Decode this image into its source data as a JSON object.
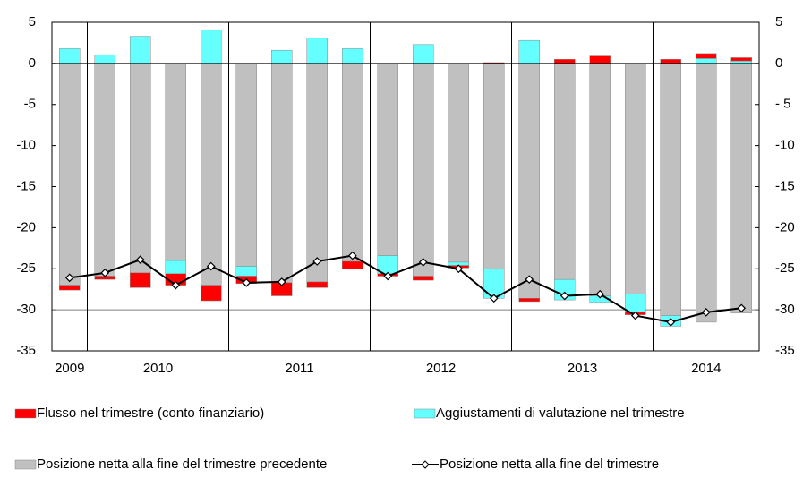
{
  "chart_data": {
    "type": "bar",
    "categories": [
      "2009",
      "2010",
      null,
      null,
      null,
      "2011",
      null,
      null,
      null,
      "2012",
      null,
      null,
      null,
      "2013",
      null,
      null,
      null,
      "2014",
      null,
      null
    ],
    "series": [
      {
        "name": "Flusso nel trimestre (conto finanziario)",
        "color": "#ff0000",
        "values": [
          -0.6,
          -0.4,
          -1.8,
          -1.4,
          -1.9,
          -0.9,
          -1.6,
          -0.7,
          -0.9,
          -0.3,
          -0.5,
          -0.3,
          0.1,
          -0.4,
          0.5,
          0.9,
          -0.3,
          0.5,
          0.6,
          0.4
        ]
      },
      {
        "name": "Aggiustamenti di valutazione nel trimestre",
        "color": "#66ffff",
        "values": [
          1.8,
          1.0,
          3.3,
          -1.6,
          4.1,
          -1.2,
          1.6,
          3.1,
          1.8,
          -2.2,
          2.3,
          -0.4,
          -3.6,
          2.8,
          -2.5,
          -0.8,
          -2.2,
          -1.3,
          0.6,
          0.3
        ]
      },
      {
        "name": "Posizione netta alla fine del trimestre precedente",
        "color": "#c0c0c0",
        "values": [
          -27.0,
          -25.9,
          -25.5,
          -24.0,
          -27.0,
          -24.7,
          -26.7,
          -26.6,
          -24.1,
          -23.4,
          -25.9,
          -24.2,
          -25.0,
          -28.6,
          -26.3,
          -28.3,
          -28.1,
          -30.7,
          -31.5,
          -30.4
        ]
      },
      {
        "name": "Posizione netta alla fine del trimestre",
        "color": "#000000",
        "line": true,
        "values": [
          -26.1,
          -25.5,
          -23.9,
          -27.0,
          -24.7,
          -26.7,
          -26.6,
          -24.1,
          -23.4,
          -25.9,
          -24.2,
          -25.0,
          -28.6,
          -26.3,
          -28.3,
          -28.1,
          -30.7,
          -31.5,
          -30.3,
          -29.8
        ]
      }
    ],
    "ylim": [
      -35,
      5
    ],
    "yticks": [
      5,
      0,
      -5,
      -10,
      -15,
      -20,
      -25,
      -30,
      -35
    ],
    "y2lim": [
      -35,
      5
    ],
    "y2ticks": [
      5,
      0,
      {
        "value": -5,
        "label": "- 5"
      },
      -10,
      -15,
      -20,
      -25,
      -30,
      -35
    ],
    "reference_line": -30
  }
}
